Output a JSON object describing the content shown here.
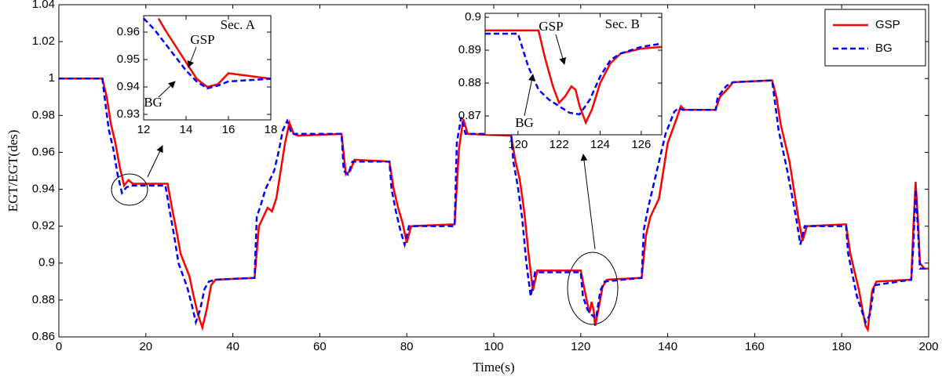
{
  "chart_data": [
    {
      "type": "line",
      "xlabel": "Time(s)",
      "ylabel": "EGT/EGT(des)",
      "xlim": [
        0,
        200
      ],
      "ylim": [
        0.86,
        1.04
      ],
      "xticks": [
        0,
        20,
        40,
        60,
        80,
        100,
        120,
        140,
        160,
        180,
        200
      ],
      "yticks": [
        0.86,
        0.88,
        0.9,
        0.92,
        0.94,
        0.96,
        0.98,
        1,
        1.02,
        1.04
      ],
      "legend": "upper right",
      "series": [
        {
          "name": "GSP",
          "color": "#ff0000",
          "style": "solid",
          "x": [
            0,
            10,
            11,
            12,
            13,
            14,
            15,
            16,
            17,
            25,
            26,
            27,
            28,
            30,
            31,
            32,
            33,
            34,
            35,
            36,
            45,
            46,
            47,
            48,
            49,
            50,
            51,
            52,
            53,
            54,
            55,
            65,
            66,
            67,
            68,
            76,
            77,
            78,
            79,
            80,
            81,
            91,
            92,
            93,
            94,
            104,
            105,
            106,
            107,
            108,
            109,
            110,
            120,
            121,
            122,
            122.5,
            123,
            123.3,
            124,
            125,
            126,
            134,
            135,
            136,
            138,
            139,
            140,
            142,
            143,
            144,
            151,
            152,
            154,
            155,
            164,
            165,
            166,
            168,
            169,
            170,
            171,
            172,
            181,
            182,
            184,
            185,
            185.5,
            186,
            187,
            188,
            196,
            196.5,
            197,
            197.5,
            198,
            199,
            200
          ],
          "values": [
            1,
            1,
            0.99,
            0.975,
            0.965,
            0.952,
            0.942,
            0.945,
            0.943,
            0.943,
            0.93,
            0.918,
            0.905,
            0.893,
            0.882,
            0.872,
            0.865,
            0.875,
            0.888,
            0.891,
            0.892,
            0.92,
            0.925,
            0.93,
            0.928,
            0.935,
            0.95,
            0.965,
            0.976,
            0.97,
            0.969,
            0.97,
            0.948,
            0.95,
            0.956,
            0.955,
            0.94,
            0.93,
            0.922,
            0.911,
            0.92,
            0.921,
            0.962,
            0.978,
            0.97,
            0.969,
            0.955,
            0.945,
            0.928,
            0.905,
            0.885,
            0.896,
            0.896,
            0.884,
            0.873,
            0.879,
            0.874,
            0.866,
            0.874,
            0.887,
            0.891,
            0.892,
            0.915,
            0.925,
            0.935,
            0.95,
            0.965,
            0.978,
            0.985,
            0.983,
            0.983,
            0.99,
            0.995,
            0.998,
            0.999,
            0.99,
            0.975,
            0.955,
            0.94,
            0.925,
            0.912,
            0.92,
            0.921,
            0.905,
            0.885,
            0.872,
            0.866,
            0.864,
            0.885,
            0.89,
            0.891,
            0.92,
            0.944,
            0.925,
            0.9,
            0.897,
            0.897
          ]
        },
        {
          "name": "BG",
          "color": "#0000ff",
          "style": "dashed",
          "x": [
            0,
            10,
            10.5,
            11.5,
            12.5,
            13.5,
            14.5,
            15.5,
            16.5,
            24.5,
            25.5,
            26.5,
            27.5,
            29.5,
            30.5,
            31.5,
            32.5,
            33.5,
            34.5,
            36,
            45,
            45.5,
            46.5,
            47.5,
            49.5,
            50.5,
            51.5,
            52.5,
            53.5,
            55,
            65,
            65.5,
            66.5,
            67.5,
            76,
            76.5,
            77.5,
            78.5,
            79.5,
            80.5,
            91,
            91.5,
            92.5,
            93.5,
            104,
            104.5,
            105.5,
            106.5,
            107.5,
            108.5,
            109.5,
            120,
            120.5,
            121.5,
            122.5,
            123.5,
            124.5,
            125.5,
            134,
            134.5,
            135.5,
            137.5,
            139.5,
            141.5,
            142.5,
            143.5,
            151,
            151.5,
            153.5,
            155,
            164,
            164.5,
            165.5,
            167.5,
            169.5,
            170.5,
            171.5,
            181,
            181.5,
            183.5,
            185.5,
            186.5,
            187.5,
            196,
            196.5,
            197,
            197.5,
            198,
            200
          ],
          "values": [
            1,
            1,
            0.99,
            0.972,
            0.962,
            0.948,
            0.938,
            0.941,
            0.942,
            0.942,
            0.928,
            0.915,
            0.9,
            0.887,
            0.878,
            0.868,
            0.875,
            0.886,
            0.89,
            0.891,
            0.892,
            0.925,
            0.932,
            0.94,
            0.95,
            0.96,
            0.972,
            0.977,
            0.97,
            0.97,
            0.97,
            0.95,
            0.948,
            0.955,
            0.955,
            0.94,
            0.928,
            0.918,
            0.91,
            0.92,
            0.92,
            0.965,
            0.979,
            0.97,
            0.97,
            0.955,
            0.942,
            0.925,
            0.9,
            0.882,
            0.895,
            0.895,
            0.882,
            0.875,
            0.872,
            0.87,
            0.885,
            0.89,
            0.892,
            0.918,
            0.93,
            0.95,
            0.97,
            0.982,
            0.984,
            0.983,
            0.983,
            0.99,
            0.996,
            0.998,
            0.999,
            0.99,
            0.972,
            0.95,
            0.925,
            0.91,
            0.92,
            0.92,
            0.905,
            0.882,
            0.868,
            0.872,
            0.888,
            0.891,
            0.91,
            0.94,
            0.92,
            0.897,
            0.897
          ]
        }
      ]
    },
    {
      "type": "line",
      "label": "Sec. A",
      "xlim": [
        12,
        18
      ],
      "ylim": [
        0.928,
        0.966
      ],
      "xticks": [
        12,
        14,
        16,
        18
      ],
      "yticks": [
        0.93,
        0.94,
        0.95,
        0.96
      ],
      "annotations": [
        "GSP",
        "BG"
      ],
      "series": [
        {
          "color": "#ff0000",
          "style": "solid",
          "x": [
            12.7,
            13,
            13.5,
            14,
            14.5,
            15,
            15.5,
            16,
            16.5,
            17,
            18
          ],
          "values": [
            0.965,
            0.961,
            0.955,
            0.949,
            0.943,
            0.94,
            0.941,
            0.945,
            0.9445,
            0.944,
            0.943
          ]
        },
        {
          "color": "#0000ff",
          "style": "dashed",
          "x": [
            12,
            12.5,
            13,
            13.5,
            14,
            14.5,
            15,
            15.5,
            16,
            17,
            18
          ],
          "values": [
            0.965,
            0.961,
            0.956,
            0.951,
            0.946,
            0.942,
            0.9395,
            0.9405,
            0.942,
            0.9425,
            0.943
          ]
        }
      ]
    },
    {
      "type": "line",
      "label": "Sec. B",
      "xlim": [
        118.4,
        127
      ],
      "ylim": [
        0.8643,
        0.9012
      ],
      "xticks": [
        120,
        122,
        124,
        126
      ],
      "yticks": [
        0.87,
        0.88,
        0.89,
        0.9
      ],
      "annotations": [
        "GSP",
        "BG"
      ],
      "series": [
        {
          "color": "#ff0000",
          "style": "solid",
          "x": [
            118.4,
            121,
            121.3,
            121.7,
            122,
            122.3,
            122.6,
            122.8,
            123,
            123.3,
            123.6,
            124,
            124.5,
            125,
            126,
            127
          ],
          "values": [
            0.896,
            0.896,
            0.888,
            0.879,
            0.874,
            0.876,
            0.879,
            0.878,
            0.873,
            0.868,
            0.872,
            0.88,
            0.886,
            0.889,
            0.8905,
            0.891
          ]
        },
        {
          "color": "#0000ff",
          "style": "dashed",
          "x": [
            118.4,
            120,
            120.5,
            121,
            121.5,
            122,
            122.5,
            123,
            123.5,
            124,
            124.5,
            125,
            126,
            127
          ],
          "values": [
            0.895,
            0.895,
            0.885,
            0.878,
            0.875,
            0.873,
            0.871,
            0.8705,
            0.875,
            0.882,
            0.887,
            0.889,
            0.891,
            0.892
          ]
        }
      ]
    }
  ]
}
